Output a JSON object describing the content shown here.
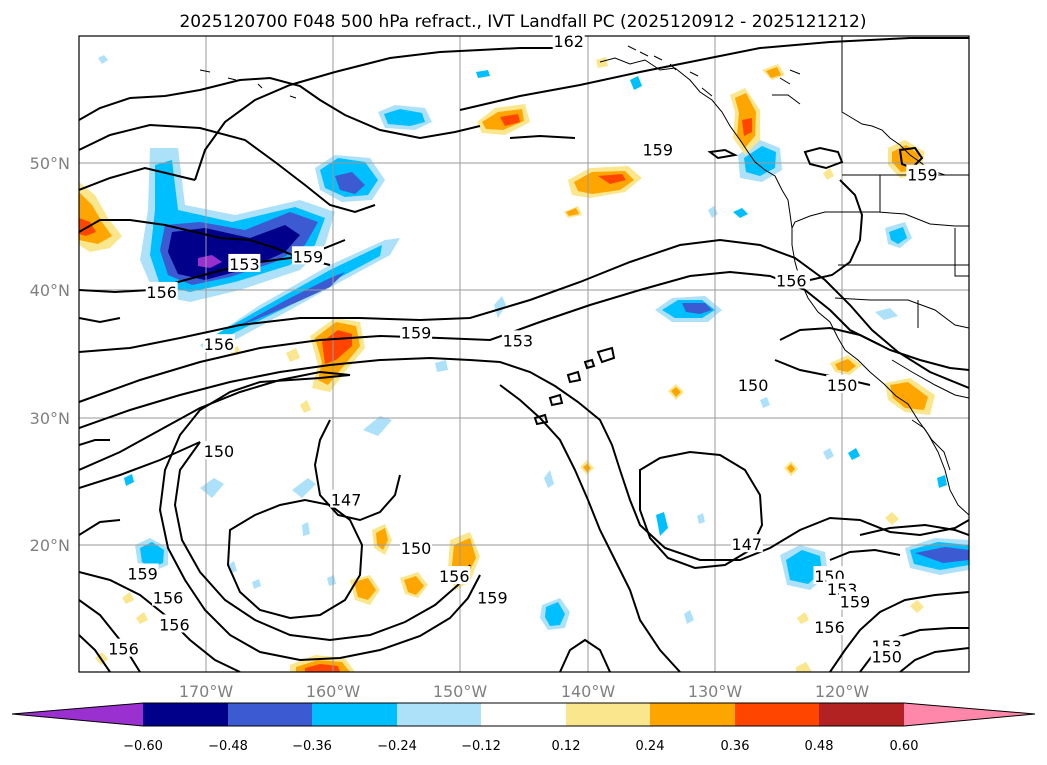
{
  "title": "2025120700 F048 500 hPa refract., IVT Landfall PC (2025120912 - 2025121212)",
  "lon_labels": [
    "170°W",
    "160°W",
    "150°W",
    "140°W",
    "130°W",
    "120°W"
  ],
  "lat_labels": [
    "50°N",
    "40°N",
    "30°N",
    "20°N"
  ],
  "colorbar": {
    "ticks": [
      "−0.60",
      "−0.48",
      "−0.36",
      "−0.24",
      "−0.12",
      "0.12",
      "0.24",
      "0.36",
      "0.48",
      "0.60"
    ],
    "colors": [
      "#9b30d0",
      "#00008b",
      "#3c5ad2",
      "#00bfff",
      "#ade1fa",
      "#ffffff",
      "#fae68c",
      "#ffa500",
      "#ff4500",
      "#b22222",
      "#ff88aa"
    ]
  },
  "contour_labels": [
    {
      "text": "162",
      "lon": -141.5,
      "lat": 59.5
    },
    {
      "text": "159",
      "lon": -134.5,
      "lat": 51.0
    },
    {
      "text": "159",
      "lon": -113.7,
      "lat": 49.0
    },
    {
      "text": "156",
      "lon": -124.0,
      "lat": 40.7
    },
    {
      "text": "159",
      "lon": -162.0,
      "lat": 42.6
    },
    {
      "text": "153",
      "lon": -167.0,
      "lat": 42.0
    },
    {
      "text": "156",
      "lon": -173.5,
      "lat": 39.8
    },
    {
      "text": "159",
      "lon": -153.5,
      "lat": 36.6
    },
    {
      "text": "156",
      "lon": -169.0,
      "lat": 35.7
    },
    {
      "text": "153",
      "lon": -145.5,
      "lat": 36.0
    },
    {
      "text": "150",
      "lon": -127.0,
      "lat": 32.5
    },
    {
      "text": "150",
      "lon": -120.0,
      "lat": 32.5
    },
    {
      "text": "150",
      "lon": -169.0,
      "lat": 27.3
    },
    {
      "text": "147",
      "lon": -159.0,
      "lat": 23.5
    },
    {
      "text": "150",
      "lon": -153.5,
      "lat": 19.7
    },
    {
      "text": "147",
      "lon": -127.5,
      "lat": 20.0
    },
    {
      "text": "156",
      "lon": -150.5,
      "lat": 17.5
    },
    {
      "text": "159",
      "lon": -147.5,
      "lat": 15.8
    },
    {
      "text": "159",
      "lon": -175.0,
      "lat": 17.7
    },
    {
      "text": "156",
      "lon": -173.0,
      "lat": 15.8
    },
    {
      "text": "156",
      "lon": -172.5,
      "lat": 13.7
    },
    {
      "text": "156",
      "lon": -176.5,
      "lat": 11.8
    },
    {
      "text": "150",
      "lon": -121.0,
      "lat": 17.5
    },
    {
      "text": "153",
      "lon": -120.0,
      "lat": 16.5
    },
    {
      "text": "159",
      "lon": -119.0,
      "lat": 15.5
    },
    {
      "text": "156",
      "lon": -121.0,
      "lat": 13.5
    },
    {
      "text": "153",
      "lon": -116.5,
      "lat": 12.0
    },
    {
      "text": "150",
      "lon": -116.5,
      "lat": 11.2
    }
  ]
}
